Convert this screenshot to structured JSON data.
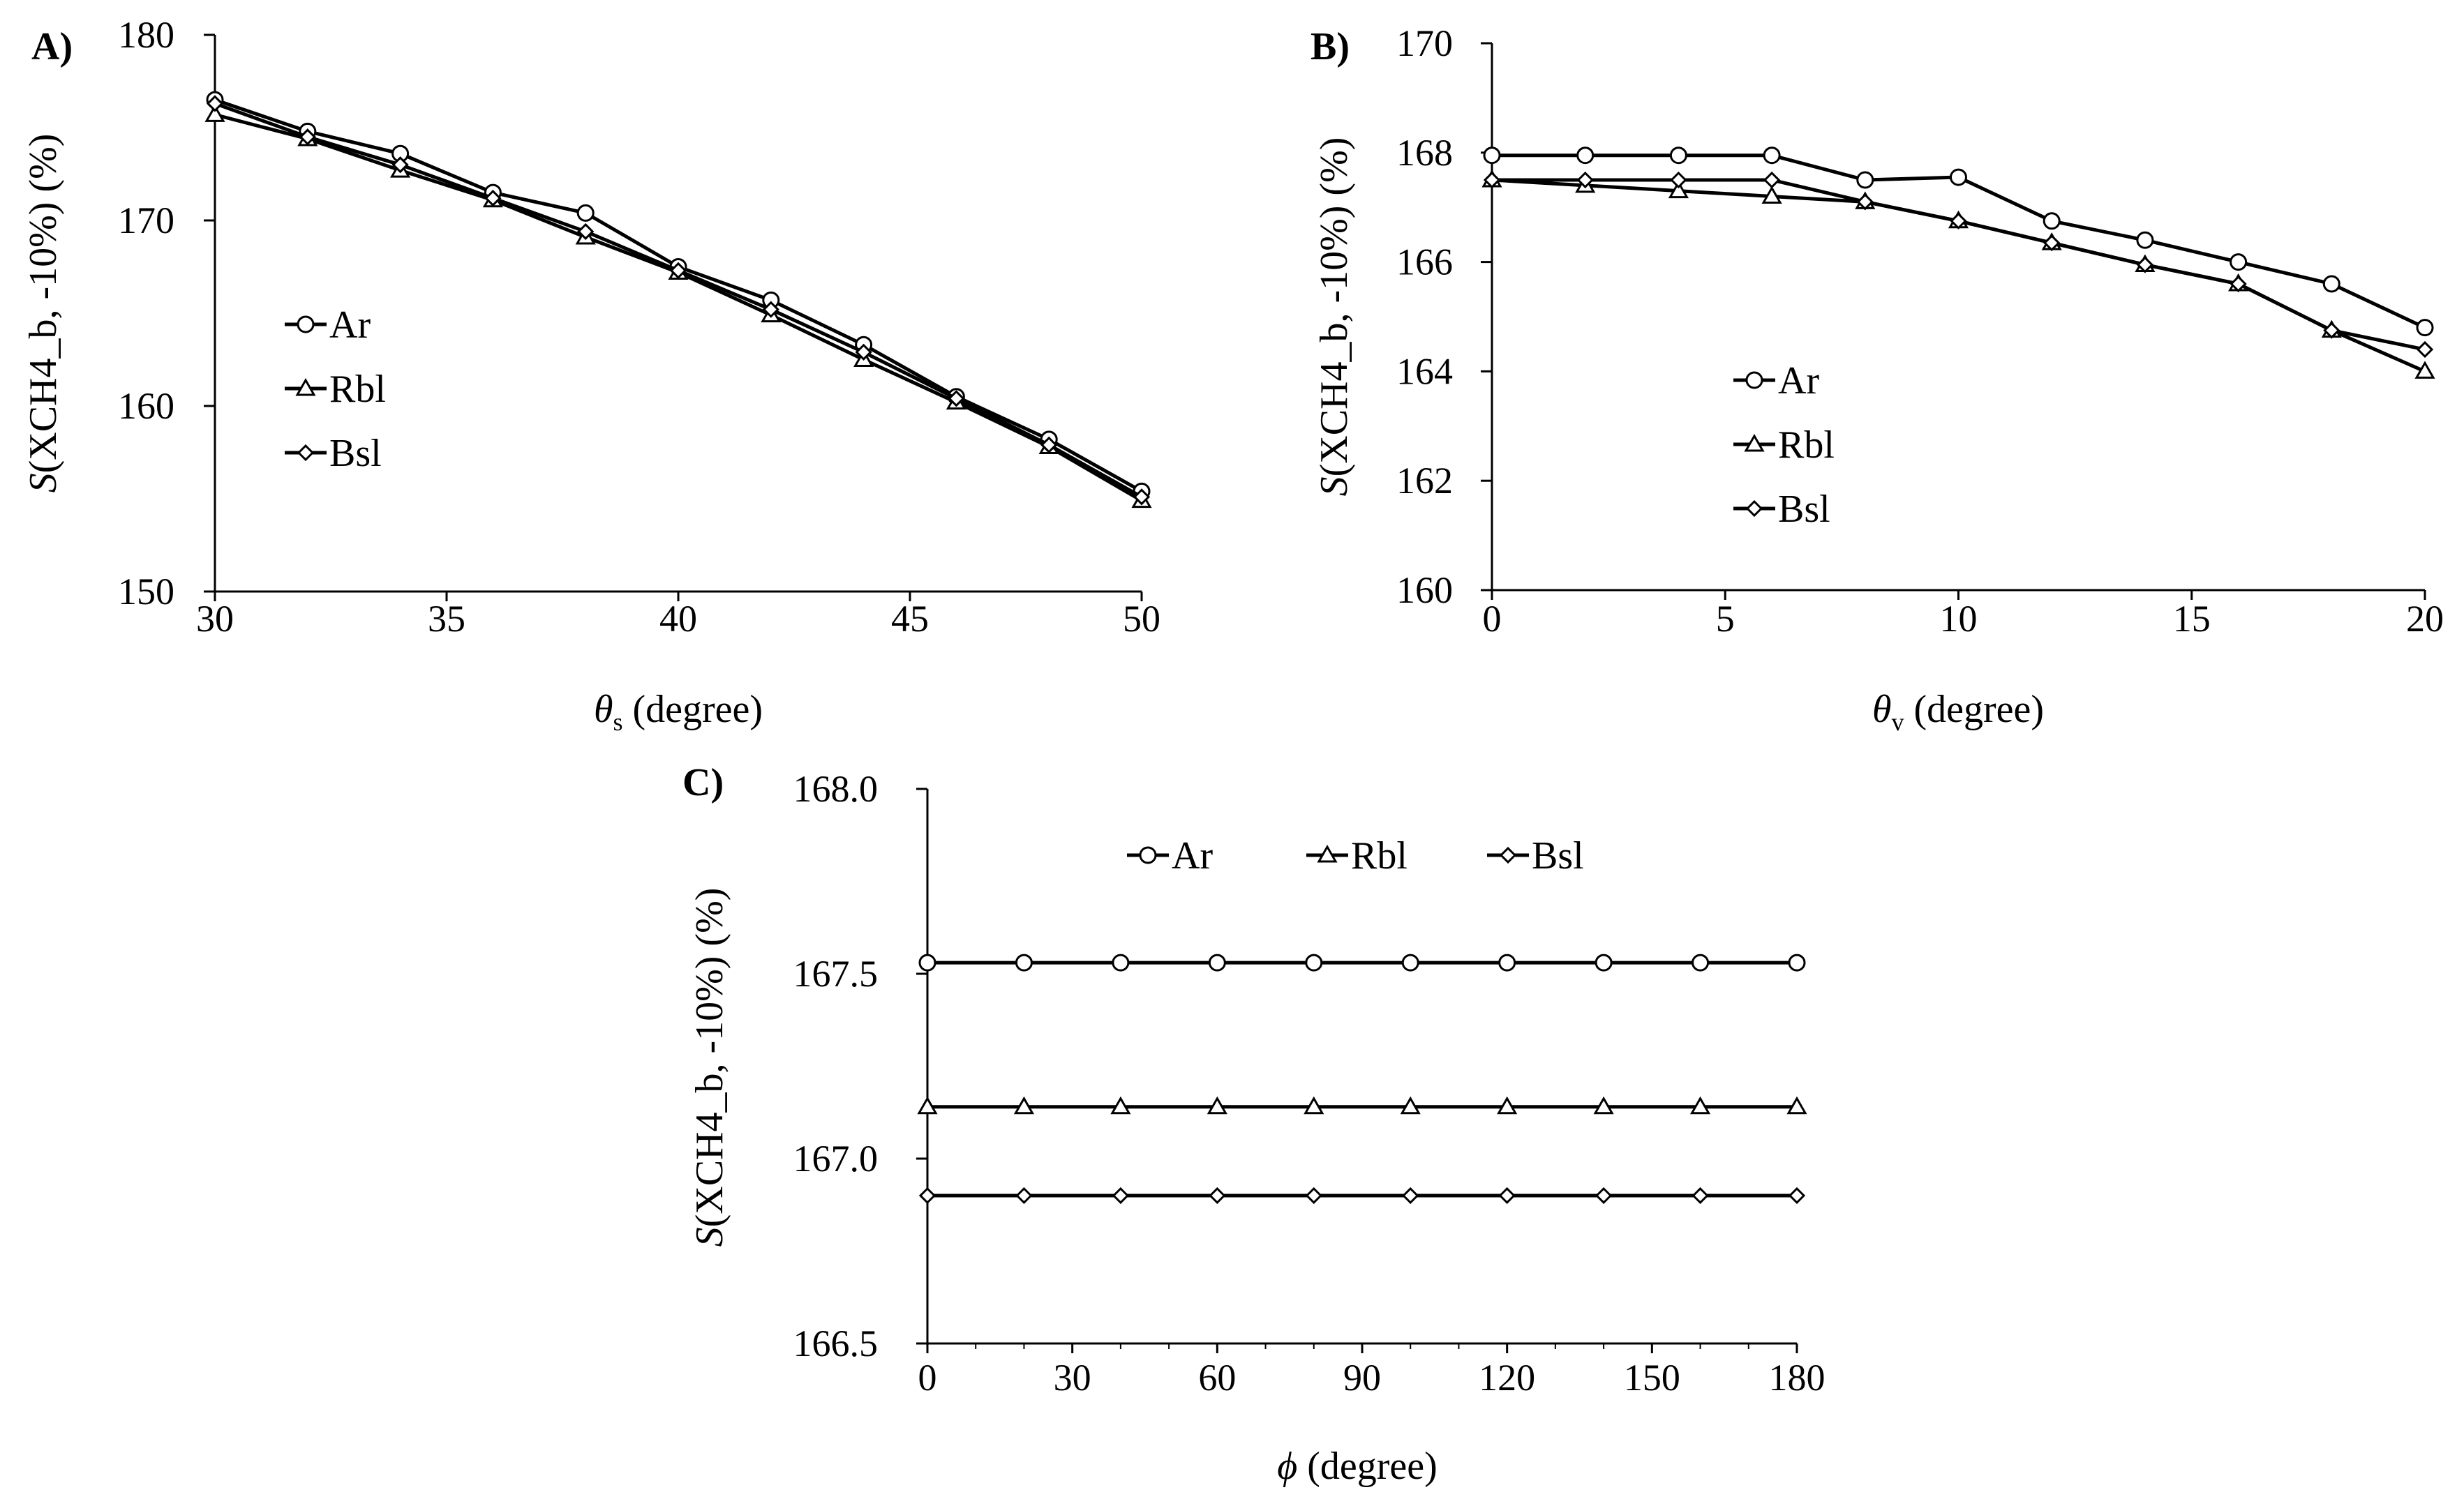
{
  "chart_data": [
    {
      "type": "line",
      "panel_label": "A)",
      "xlabel_symbol": "θ",
      "xlabel_sub": "s",
      "xlabel_rest": " (degree)",
      "ylabel_s": "S",
      "ylabel_rest": "(XCH4_b, -10%) (%)",
      "xlim": [
        30,
        50
      ],
      "ylim": [
        150,
        180
      ],
      "xticks": [
        30,
        35,
        40,
        45,
        50
      ],
      "yticks": [
        150,
        160,
        170,
        180
      ],
      "x": [
        30,
        32,
        34,
        36,
        38,
        40,
        42,
        44,
        46,
        48,
        50
      ],
      "legend_position": "left-middle",
      "series": [
        {
          "name": "Ar",
          "marker": "circle",
          "values": [
            176.5,
            174.8,
            173.6,
            171.5,
            170.4,
            167.5,
            165.7,
            163.3,
            160.5,
            158.2,
            155.4
          ]
        },
        {
          "name": "Rbl",
          "marker": "triangle",
          "values": [
            175.7,
            174.4,
            172.7,
            171.1,
            169.1,
            167.2,
            164.9,
            162.5,
            160.2,
            157.8,
            154.9
          ]
        },
        {
          "name": "Bsl",
          "marker": "diamond",
          "values": [
            176.3,
            174.5,
            173.0,
            171.2,
            169.4,
            167.3,
            165.2,
            162.9,
            160.4,
            157.9,
            155.1
          ]
        }
      ]
    },
    {
      "type": "line",
      "panel_label": "B)",
      "xlabel_symbol": "θ",
      "xlabel_sub": "v",
      "xlabel_rest": "  (degree)",
      "ylabel_s": "S",
      "ylabel_rest": "(XCH4_b, -10%) (%)",
      "xlim": [
        0,
        20
      ],
      "ylim": [
        160,
        170
      ],
      "xticks": [
        0,
        5,
        10,
        15,
        20
      ],
      "yticks": [
        160,
        162,
        164,
        166,
        168,
        170
      ],
      "x": [
        0,
        2,
        4,
        6,
        8,
        10,
        12,
        14,
        16,
        18,
        20
      ],
      "legend_position": "left-bottom",
      "series": [
        {
          "name": "Ar",
          "marker": "circle",
          "values": [
            167.95,
            167.95,
            167.95,
            167.95,
            167.5,
            167.55,
            166.75,
            166.4,
            166.0,
            165.6,
            164.8
          ]
        },
        {
          "name": "Rbl",
          "marker": "triangle",
          "values": [
            167.5,
            167.4,
            167.3,
            167.2,
            167.1,
            166.75,
            166.35,
            165.95,
            165.6,
            164.75,
            164.0
          ]
        },
        {
          "name": "Bsl",
          "marker": "diamond",
          "values": [
            167.5,
            167.5,
            167.5,
            167.5,
            167.1,
            166.75,
            166.35,
            165.95,
            165.6,
            164.75,
            164.4
          ]
        }
      ]
    },
    {
      "type": "line",
      "panel_label": "C)",
      "xlabel_symbol": "ϕ",
      "xlabel_sub": "",
      "xlabel_rest": " (degree)",
      "ylabel_s": "S",
      "ylabel_rest": "(XCH4_b, -10%) (%)",
      "xlim": [
        0,
        180
      ],
      "ylim": [
        166.5,
        168.0
      ],
      "xticks": [
        0,
        30,
        60,
        90,
        120,
        150,
        180
      ],
      "yticks": [
        "166.5",
        "167.0",
        "167.5",
        "168.0"
      ],
      "x": [
        0,
        20,
        40,
        60,
        80,
        100,
        120,
        140,
        160,
        180
      ],
      "legend_position": "top",
      "series": [
        {
          "name": "Ar",
          "marker": "circle",
          "values": [
            167.53,
            167.53,
            167.53,
            167.53,
            167.53,
            167.53,
            167.53,
            167.53,
            167.53,
            167.53
          ]
        },
        {
          "name": "Rbl",
          "marker": "triangle",
          "values": [
            167.14,
            167.14,
            167.14,
            167.14,
            167.14,
            167.14,
            167.14,
            167.14,
            167.14,
            167.14
          ]
        },
        {
          "name": "Bsl",
          "marker": "diamond",
          "values": [
            166.9,
            166.9,
            166.9,
            166.9,
            166.9,
            166.9,
            166.9,
            166.9,
            166.9,
            166.9
          ]
        }
      ]
    }
  ]
}
